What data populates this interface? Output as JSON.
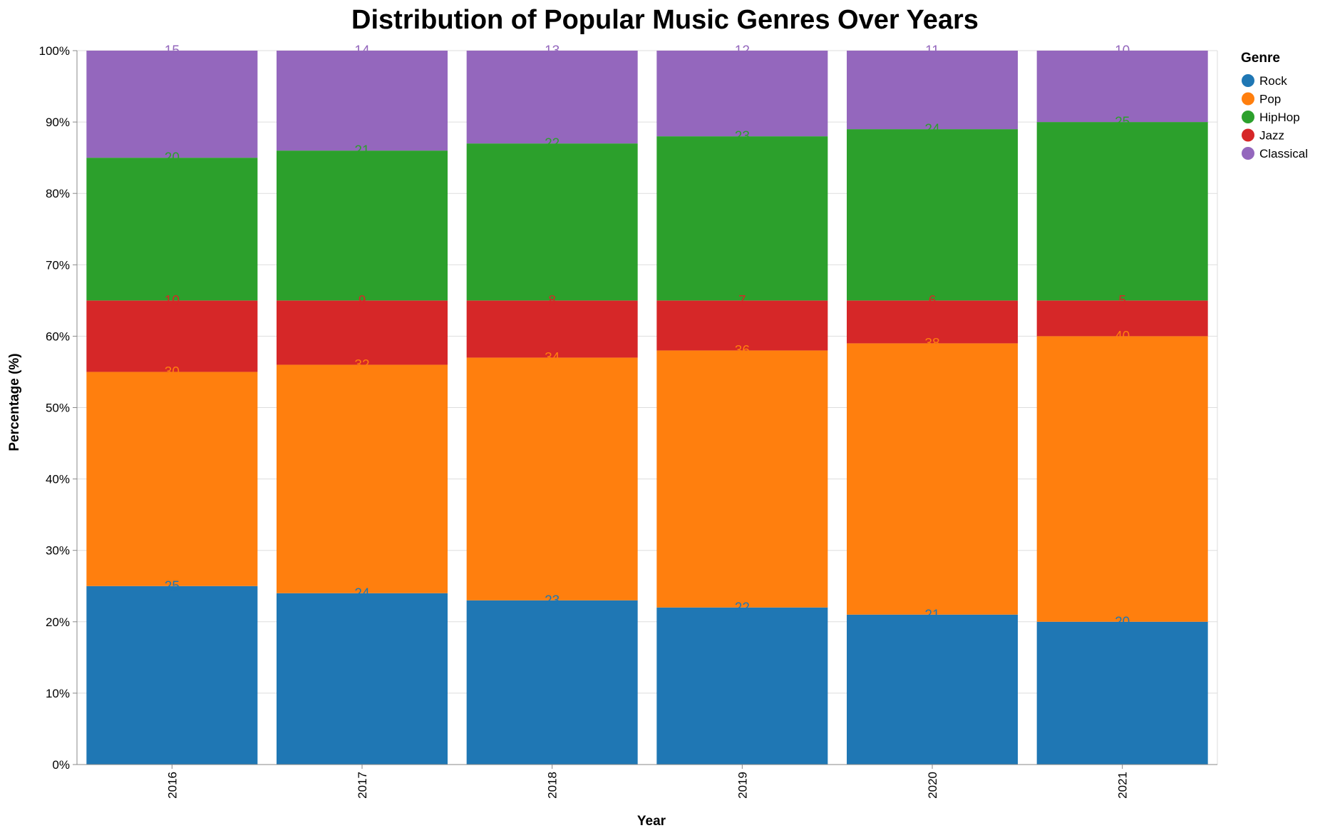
{
  "chart_data": {
    "type": "bar",
    "stacked": true,
    "normalized": true,
    "title": "Distribution of Popular Music Genres Over Years",
    "xlabel": "Year",
    "ylabel": "Percentage (%)",
    "ylim": [
      0,
      100
    ],
    "y_ticks": [
      "0%",
      "10%",
      "20%",
      "30%",
      "40%",
      "50%",
      "60%",
      "70%",
      "80%",
      "90%",
      "100%"
    ],
    "grid": true,
    "legend_position": "right",
    "legend_title": "Genre",
    "categories": [
      "2016",
      "2017",
      "2018",
      "2019",
      "2020",
      "2021"
    ],
    "series": [
      {
        "name": "Rock",
        "color": "#1f77b4",
        "values": [
          25,
          24,
          23,
          22,
          21,
          20
        ]
      },
      {
        "name": "Pop",
        "color": "#ff7f0e",
        "values": [
          30,
          32,
          34,
          36,
          38,
          40
        ]
      },
      {
        "name": "Jazz",
        "color": "#d62728",
        "values": [
          10,
          9,
          8,
          7,
          6,
          5
        ]
      },
      {
        "name": "HipHop",
        "color": "#2ca02c",
        "values": [
          20,
          21,
          22,
          23,
          24,
          25
        ]
      },
      {
        "name": "Classical",
        "color": "#9467bd",
        "values": [
          15,
          14,
          13,
          12,
          11,
          10
        ]
      }
    ],
    "legend_order": [
      "Rock",
      "Pop",
      "HipHop",
      "Jazz",
      "Classical"
    ]
  }
}
